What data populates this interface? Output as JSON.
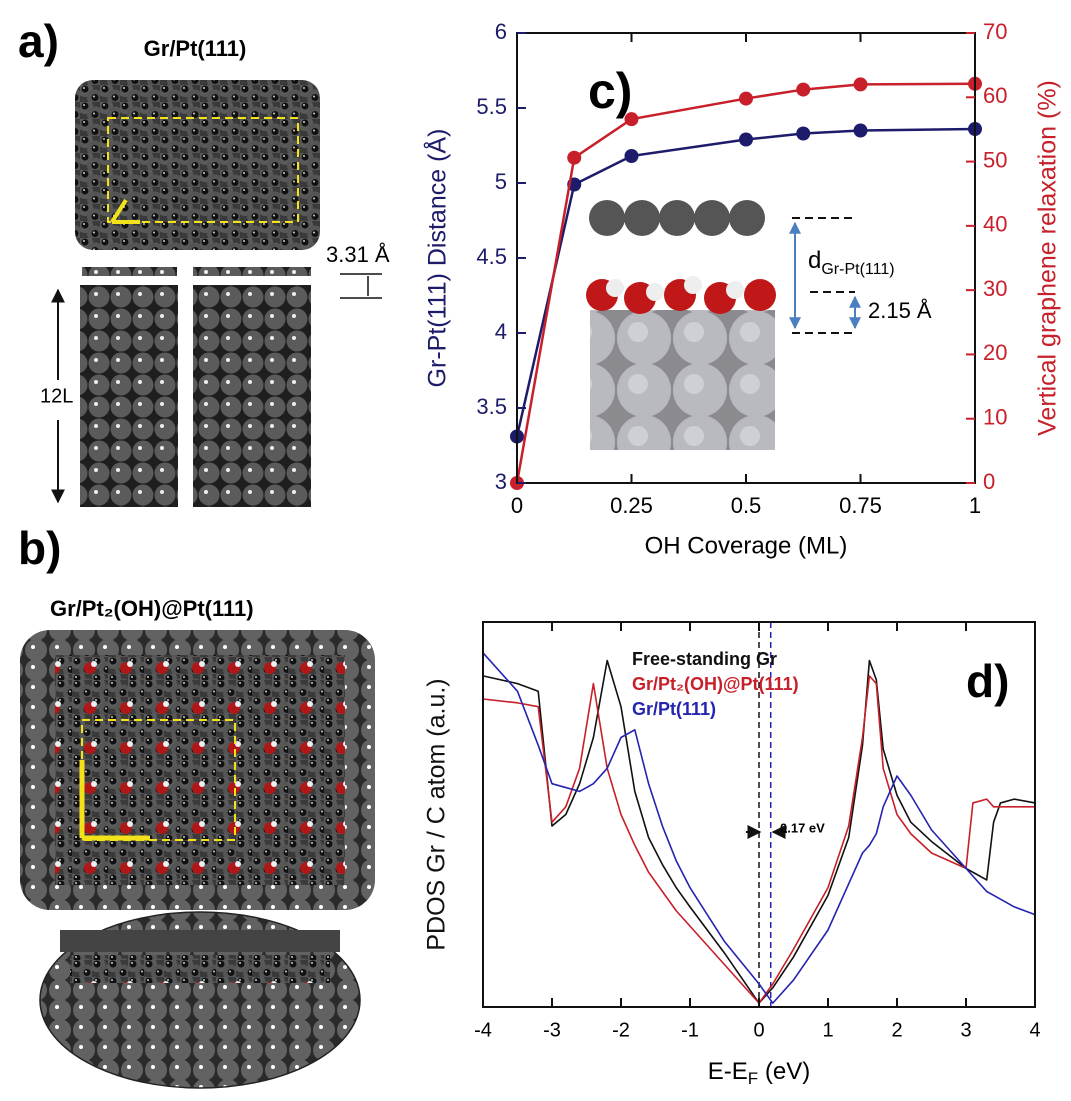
{
  "figure": {
    "panel_a_label": "a)",
    "panel_a_title": "Gr/Pt(111)",
    "panel_a_spacing": "3.31 Å",
    "panel_a_layers": "12L",
    "panel_b_label": "b)",
    "panel_b_title": "Gr/Pt₂(OH)@Pt(111)"
  },
  "chart_data": [
    {
      "type": "line",
      "panel_label": "c)",
      "xlabel": "OH Coverage (ML)",
      "ylabel": "Gr-Pt(111) Distance (Å)",
      "y2label": "Vertical graphene relaxation (%)",
      "x": [
        0,
        0.125,
        0.25,
        0.5,
        0.625,
        0.75,
        1
      ],
      "series": [
        {
          "name": "Gr-Pt(111) Distance",
          "color": "#1c1c6b",
          "axis": "y",
          "values": [
            3.31,
            4.99,
            5.18,
            5.29,
            5.33,
            5.35,
            5.36
          ]
        },
        {
          "name": "Vertical graphene relaxation",
          "color": "#c8202a",
          "axis": "y2",
          "values": [
            0,
            50.6,
            56.6,
            59.8,
            61.2,
            62.0,
            62.1
          ]
        }
      ],
      "markers": true,
      "xlim": [
        0,
        1
      ],
      "xticks": [
        0,
        0.25,
        0.5,
        0.75,
        1
      ],
      "ylim": [
        3,
        6
      ],
      "yticks": [
        3,
        3.5,
        4,
        4.5,
        5,
        5.5,
        6
      ],
      "ycolor": "#1c1c6b",
      "y2lim": [
        0,
        70
      ],
      "y2ticks": [
        0,
        10,
        20,
        30,
        40,
        50,
        60,
        70
      ],
      "y2color": "#c8202a",
      "annotations": [
        {
          "text": "d",
          "sub": "Gr-Pt(111)"
        },
        {
          "text": "2.15 Å"
        }
      ]
    },
    {
      "type": "line",
      "panel_label": "d)",
      "xlabel": {
        "text": "E-E",
        "sub": "F",
        "suffix": " (eV)"
      },
      "ylabel": "PDOS Gr / C atom (a.u.)",
      "x": [
        -4,
        -3.5,
        -3.2,
        -3,
        -2.8,
        -2.6,
        -2.4,
        -2.2,
        -2,
        -1.8,
        -1.6,
        -1.4,
        -1.2,
        -1,
        -0.5,
        0,
        0.2,
        0.5,
        1,
        1.3,
        1.5,
        1.6,
        1.7,
        1.8,
        2,
        2.2,
        2.5,
        3,
        3.1,
        3.3,
        3.4,
        3.5,
        3.7,
        4
      ],
      "series": [
        {
          "name": "Free-standing Gr",
          "color": "#111111",
          "values": [
            0.86,
            0.84,
            0.82,
            0.47,
            0.5,
            0.58,
            0.7,
            0.9,
            0.78,
            0.56,
            0.44,
            0.37,
            0.31,
            0.26,
            0.14,
            0.01,
            0.05,
            0.13,
            0.29,
            0.44,
            0.68,
            0.9,
            0.85,
            0.67,
            0.55,
            0.48,
            0.43,
            0.36,
            0.35,
            0.33,
            0.48,
            0.53,
            0.54,
            0.53
          ]
        },
        {
          "name": "Gr/Pt₂(OH)@Pt(111)",
          "color": "#c8202a",
          "values": [
            0.8,
            0.79,
            0.78,
            0.48,
            0.52,
            0.62,
            0.84,
            0.62,
            0.5,
            0.42,
            0.35,
            0.3,
            0.25,
            0.21,
            0.11,
            0.01,
            0.06,
            0.15,
            0.31,
            0.47,
            0.7,
            0.86,
            0.84,
            0.62,
            0.5,
            0.45,
            0.4,
            0.36,
            0.53,
            0.54,
            0.52,
            0.52,
            0.52,
            0.52
          ]
        },
        {
          "name": "Gr/Pt(111)",
          "color": "#2424b0",
          "values": [
            0.92,
            0.82,
            0.68,
            0.58,
            0.57,
            0.56,
            0.58,
            0.62,
            0.7,
            0.72,
            0.58,
            0.47,
            0.38,
            0.31,
            0.17,
            0.06,
            0.01,
            0.07,
            0.2,
            0.32,
            0.4,
            0.42,
            0.45,
            0.52,
            0.6,
            0.55,
            0.46,
            0.36,
            0.34,
            0.3,
            0.29,
            0.28,
            0.26,
            0.24
          ]
        }
      ],
      "markers": false,
      "xlim": [
        -4,
        4
      ],
      "xticks": [
        -4,
        -3,
        -2,
        -1,
        0,
        1,
        2,
        3,
        4
      ],
      "ylim": [
        0,
        1
      ],
      "reference_lines": [
        {
          "x": 0,
          "color": "#111111"
        },
        {
          "x": 0.17,
          "color": "#2424b0"
        }
      ],
      "annotations": [
        {
          "text": "0.17 eV"
        }
      ]
    }
  ]
}
